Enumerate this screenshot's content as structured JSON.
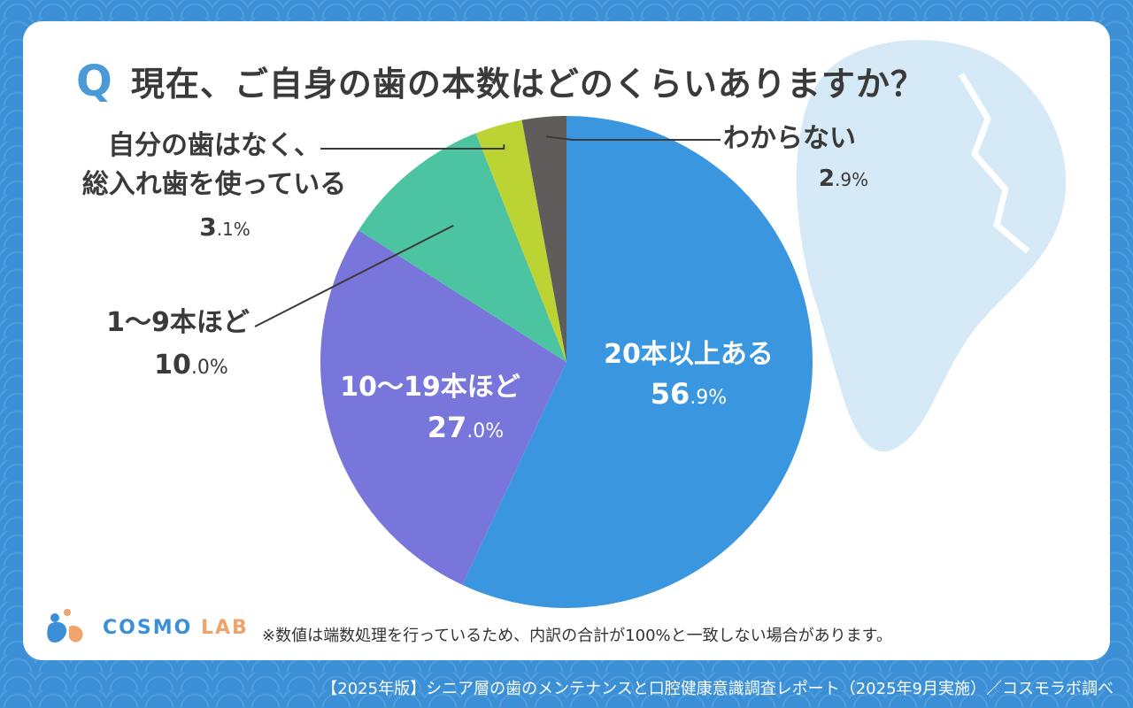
{
  "title": {
    "q": "Q",
    "q_dot": ".",
    "text": "現在、ご自身の歯の本数はどのくらいありますか？"
  },
  "chart_data": {
    "type": "pie",
    "title": "現在、ご自身の歯の本数はどのくらいありますか？",
    "unit": "%",
    "slices": [
      {
        "label": "20本以上ある",
        "value": 56.9,
        "int": "56",
        "dec": ".9%",
        "color": "#3a96de"
      },
      {
        "label": "10～19本ほど",
        "value": 27.0,
        "int": "27",
        "dec": ".0%",
        "color": "#7876db"
      },
      {
        "label": "1～9本ほど",
        "value": 10.0,
        "int": "10",
        "dec": ".0%",
        "color": "#4cc4a2"
      },
      {
        "label": "自分の歯はなく、総入れ歯を使っている",
        "label_line1": "自分の歯はなく、",
        "label_line2": "総入れ歯を使っている",
        "value": 3.1,
        "int": "3",
        "dec": ".1%",
        "color": "#bcd334"
      },
      {
        "label": "わからない",
        "value": 2.9,
        "int": "2",
        "dec": ".9%",
        "color": "#5f5c5c"
      }
    ]
  },
  "note": "※数値は端数処理を行っているため、内訳の合計が100%と一致しない場合があります。",
  "logo": {
    "brand": "COSMO",
    "suffix": "LAB",
    "icon": "tooth-logo-icon"
  },
  "footer": "【2025年版】シニア層の歯のメンテナンスと口腔健康意識調査レポート（2025年9月実施）／コスモラボ調べ",
  "colors": {
    "background": "#3a8fd6",
    "accent": "#4a9ad8",
    "tooth": "#d6e9f7"
  }
}
